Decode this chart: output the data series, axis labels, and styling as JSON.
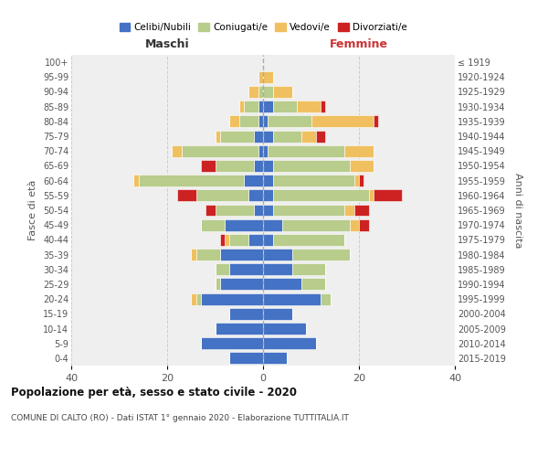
{
  "age_groups": [
    "0-4",
    "5-9",
    "10-14",
    "15-19",
    "20-24",
    "25-29",
    "30-34",
    "35-39",
    "40-44",
    "45-49",
    "50-54",
    "55-59",
    "60-64",
    "65-69",
    "70-74",
    "75-79",
    "80-84",
    "85-89",
    "90-94",
    "95-99",
    "100+"
  ],
  "birth_years": [
    "2015-2019",
    "2010-2014",
    "2005-2009",
    "2000-2004",
    "1995-1999",
    "1990-1994",
    "1985-1989",
    "1980-1984",
    "1975-1979",
    "1970-1974",
    "1965-1969",
    "1960-1964",
    "1955-1959",
    "1950-1954",
    "1945-1949",
    "1940-1944",
    "1935-1939",
    "1930-1934",
    "1925-1929",
    "1920-1924",
    "≤ 1919"
  ],
  "colors": {
    "celibi": "#4472c4",
    "coniugati": "#b8cc8c",
    "vedovi": "#f0c060",
    "divorziati": "#cc2222"
  },
  "maschi": {
    "celibi": [
      7,
      13,
      10,
      7,
      13,
      9,
      7,
      9,
      3,
      8,
      2,
      3,
      4,
      2,
      1,
      2,
      1,
      1,
      0,
      0,
      0
    ],
    "coniugati": [
      0,
      0,
      0,
      0,
      1,
      1,
      3,
      5,
      4,
      5,
      8,
      11,
      22,
      8,
      16,
      7,
      4,
      3,
      1,
      0,
      0
    ],
    "vedovi": [
      0,
      0,
      0,
      0,
      1,
      0,
      0,
      1,
      1,
      0,
      0,
      0,
      1,
      0,
      2,
      1,
      2,
      1,
      2,
      1,
      0
    ],
    "divorziati": [
      0,
      0,
      0,
      0,
      0,
      0,
      0,
      0,
      1,
      0,
      2,
      4,
      0,
      3,
      0,
      0,
      0,
      0,
      0,
      0,
      0
    ]
  },
  "femmine": {
    "celibi": [
      5,
      11,
      9,
      6,
      12,
      8,
      6,
      6,
      2,
      4,
      2,
      2,
      2,
      2,
      1,
      2,
      1,
      2,
      0,
      0,
      0
    ],
    "coniugati": [
      0,
      0,
      0,
      0,
      2,
      5,
      7,
      12,
      15,
      14,
      15,
      20,
      17,
      16,
      16,
      6,
      9,
      5,
      2,
      0,
      0
    ],
    "vedovi": [
      0,
      0,
      0,
      0,
      0,
      0,
      0,
      0,
      0,
      2,
      2,
      1,
      1,
      5,
      6,
      3,
      13,
      5,
      4,
      2,
      0
    ],
    "divorziati": [
      0,
      0,
      0,
      0,
      0,
      0,
      0,
      0,
      0,
      2,
      3,
      6,
      1,
      0,
      0,
      2,
      1,
      1,
      0,
      0,
      0
    ]
  },
  "title": "Popolazione per età, sesso e stato civile - 2020",
  "subtitle": "COMUNE DI CALTO (RO) - Dati ISTAT 1° gennaio 2020 - Elaborazione TUTTITALIA.IT",
  "label_maschi": "Maschi",
  "label_femmine": "Femmine",
  "ylabel_left": "Fasce di età",
  "ylabel_right": "Anni di nascita",
  "xlim": 40,
  "bg_color": "#ffffff",
  "plot_bg": "#efefef",
  "grid_color": "#cccccc",
  "legend_labels": [
    "Celibi/Nubili",
    "Coniugati/e",
    "Vedovi/e",
    "Divorziati/e"
  ]
}
